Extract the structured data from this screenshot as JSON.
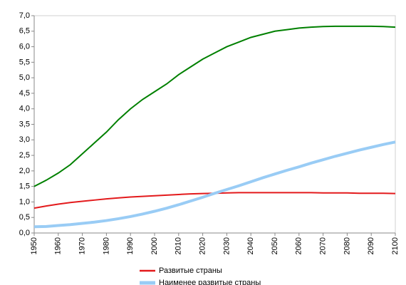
{
  "chart_data": {
    "type": "line",
    "x": [
      1950,
      1955,
      1960,
      1965,
      1970,
      1975,
      1980,
      1985,
      1990,
      1995,
      2000,
      2005,
      2010,
      2015,
      2020,
      2025,
      2030,
      2035,
      2040,
      2045,
      2050,
      2055,
      2060,
      2065,
      2070,
      2075,
      2080,
      2085,
      2090,
      2095,
      2100
    ],
    "series": [
      {
        "color": "#008000",
        "values": [
          1.5,
          1.7,
          1.93,
          2.2,
          2.55,
          2.9,
          3.25,
          3.65,
          4.0,
          4.3,
          4.55,
          4.8,
          5.1,
          5.35,
          5.6,
          5.8,
          6.0,
          6.15,
          6.3,
          6.4,
          6.5,
          6.55,
          6.6,
          6.63,
          6.65,
          6.66,
          6.66,
          6.66,
          6.66,
          6.65,
          6.63
        ]
      },
      {
        "name": "Развитые страны",
        "color": "#e31a1c",
        "values": [
          0.8,
          0.87,
          0.93,
          0.98,
          1.02,
          1.06,
          1.1,
          1.13,
          1.16,
          1.18,
          1.2,
          1.22,
          1.24,
          1.26,
          1.27,
          1.28,
          1.29,
          1.3,
          1.3,
          1.3,
          1.3,
          1.3,
          1.3,
          1.3,
          1.29,
          1.29,
          1.29,
          1.28,
          1.28,
          1.28,
          1.27
        ]
      },
      {
        "name": "Наименее развитые страны",
        "color": "#99ccf5",
        "values": [
          0.2,
          0.21,
          0.24,
          0.27,
          0.31,
          0.35,
          0.4,
          0.46,
          0.53,
          0.61,
          0.7,
          0.8,
          0.91,
          1.03,
          1.15,
          1.28,
          1.4,
          1.52,
          1.65,
          1.78,
          1.9,
          2.02,
          2.13,
          2.25,
          2.36,
          2.47,
          2.57,
          2.67,
          2.76,
          2.85,
          2.93
        ]
      }
    ],
    "xlim": [
      1950,
      2100
    ],
    "xticks": [
      1950,
      1960,
      1970,
      1980,
      1990,
      2000,
      2010,
      2020,
      2030,
      2040,
      2050,
      2060,
      2070,
      2080,
      2090,
      2100
    ],
    "ylim": [
      0,
      7
    ],
    "yticks": [
      {
        "value": 0,
        "label": "0,0"
      },
      {
        "value": 0.5,
        "label": "0,5"
      },
      {
        "value": 1,
        "label": "1,0"
      },
      {
        "value": 1.5,
        "label": "1,5"
      },
      {
        "value": 2,
        "label": "2,0"
      },
      {
        "value": 2.5,
        "label": "2,5"
      },
      {
        "value": 3,
        "label": "3,0"
      },
      {
        "value": 3.5,
        "label": "3,5"
      },
      {
        "value": 4,
        "label": "4,0"
      },
      {
        "value": 4.5,
        "label": "4,5"
      },
      {
        "value": 5,
        "label": "5,0"
      },
      {
        "value": 5.5,
        "label": "5,5"
      },
      {
        "value": 6,
        "label": "6,0"
      },
      {
        "value": 6.5,
        "label": "6,5"
      },
      {
        "value": 7,
        "label": "7,0"
      }
    ],
    "grid": false
  }
}
